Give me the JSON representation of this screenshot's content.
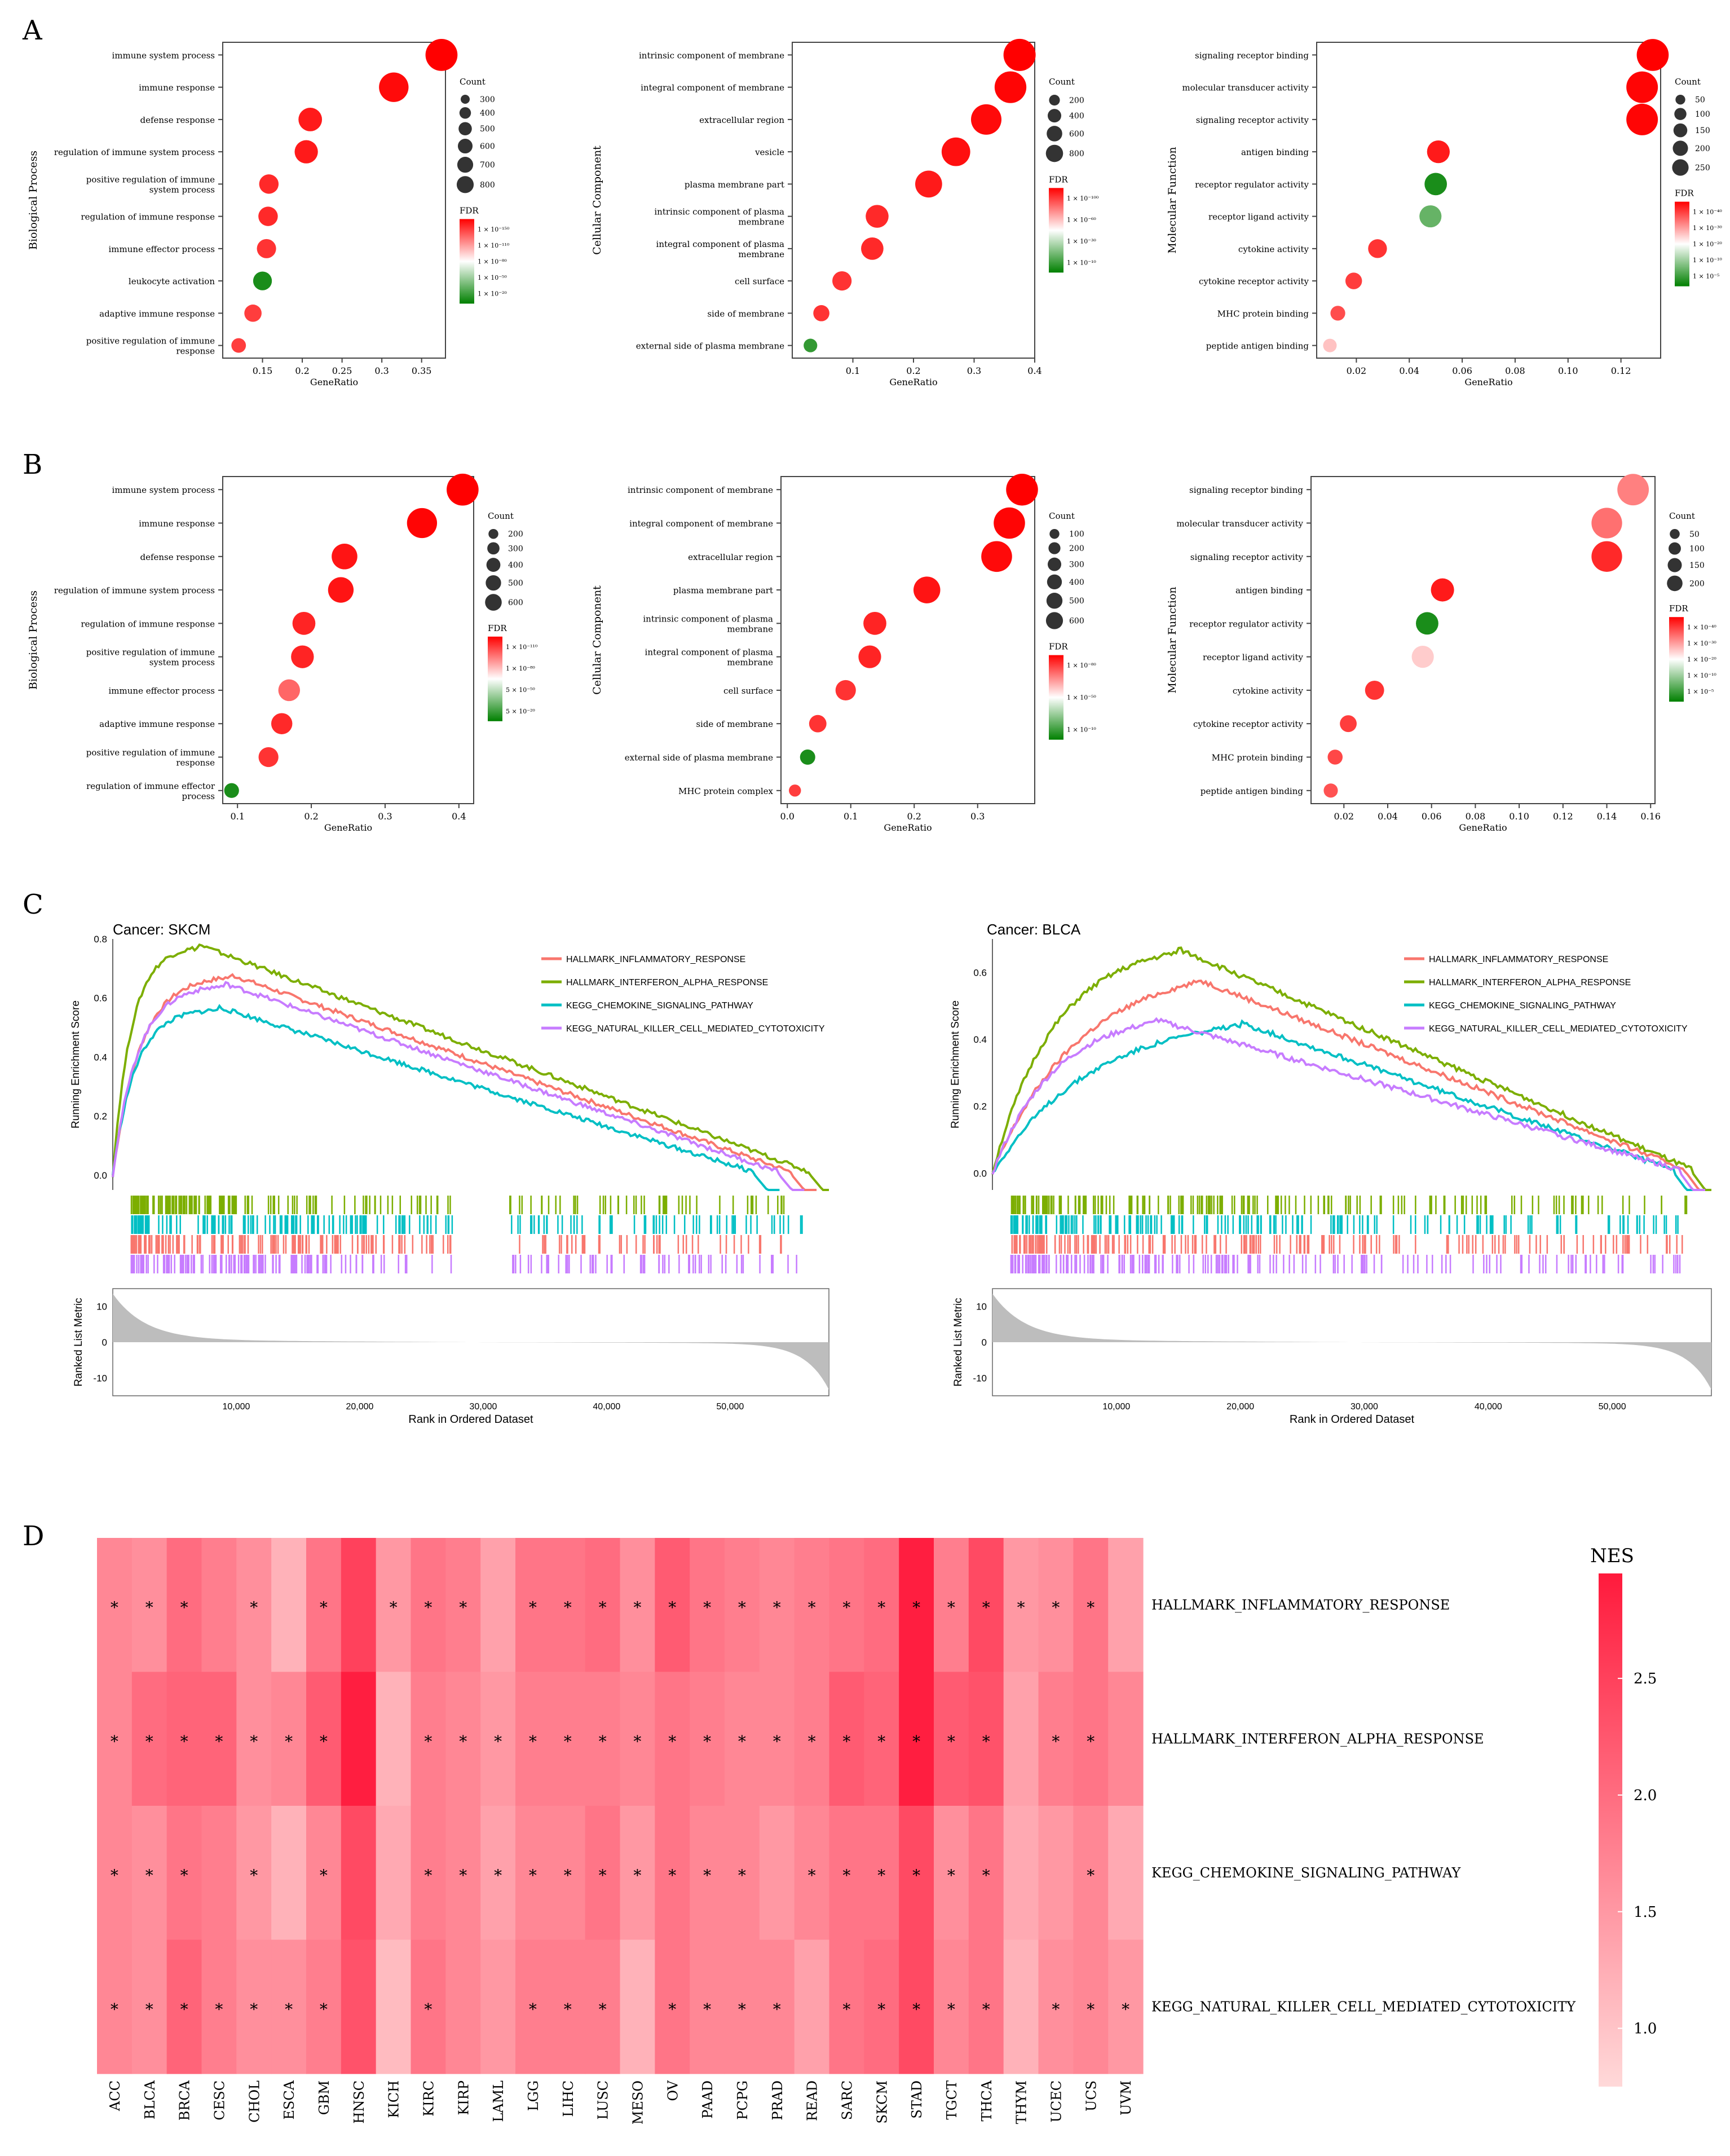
{
  "panel_labels": [
    "A",
    "B",
    "C",
    "D"
  ],
  "colors": {
    "fdr_high": "#ff0000",
    "fdr_mid": "#ffffff",
    "fdr_low": "#008000",
    "heat_high": "#ff1a3c",
    "heat_low": "#ffd9d9",
    "hm_inflam": "#f8766d",
    "hm_ifna": "#7cae00",
    "kegg_chemo": "#00bfc4",
    "kegg_nk": "#c77cff",
    "ranked_fill": "#bdbdbd"
  },
  "chart_data": [
    {
      "type": "scatter",
      "panel": "A",
      "ylabel": "Biological Process",
      "xlabel": "GeneRatio",
      "xlim": [
        0.1,
        0.38
      ],
      "xticks": [
        "0.15",
        "0.2",
        "0.25",
        "0.3",
        "0.35"
      ],
      "xtick_values": [
        0.15,
        0.2,
        0.25,
        0.3,
        0.35
      ],
      "terms": [
        "immune system process",
        "immune response",
        "defense response",
        "regulation of immune system process",
        "positive regulation of immune system process",
        "regulation of immune response",
        "immune effector process",
        "leukocyte activation",
        "adaptive immune response",
        "positive regulation of immune response"
      ],
      "values": [
        0.375,
        0.315,
        0.21,
        0.205,
        0.158,
        0.157,
        0.155,
        0.15,
        0.138,
        0.12
      ],
      "counts": [
        860,
        730,
        480,
        470,
        360,
        360,
        355,
        345,
        315,
        275
      ],
      "fdr_level": [
        1.0,
        0.98,
        0.95,
        0.95,
        0.92,
        0.92,
        0.9,
        0.05,
        0.88,
        0.88
      ],
      "count_title": "Count",
      "count_ticks": [
        "300",
        "400",
        "500",
        "600",
        "700",
        "800"
      ],
      "count_tick_values": [
        300,
        400,
        500,
        600,
        700,
        800
      ],
      "fdr_title": "FDR",
      "fdr_ticks": [
        "1 × 10⁻¹⁵⁰",
        "1 × 10⁻¹¹⁰",
        "1 × 10⁻⁸⁰",
        "1 × 10⁻⁵⁰",
        "1 × 10⁻²⁰"
      ],
      "count_range": [
        250,
        900
      ]
    },
    {
      "type": "scatter",
      "panel": "A",
      "ylabel": "Cellular Component",
      "xlabel": "GeneRatio",
      "xlim": [
        0.0,
        0.4
      ],
      "xticks": [
        "0.1",
        "0.2",
        "0.3",
        "0.4"
      ],
      "xtick_values": [
        0.1,
        0.2,
        0.3,
        0.4
      ],
      "terms": [
        "intrinsic component of membrane",
        "integral component of membrane",
        "extracellular region",
        "vesicle",
        "plasma membrane part",
        "intrinsic component of plasma membrane",
        "integral component of plasma membrane",
        "cell surface",
        "side of membrane",
        "external side of plasma membrane"
      ],
      "values": [
        0.375,
        0.36,
        0.32,
        0.27,
        0.225,
        0.14,
        0.132,
        0.082,
        0.048,
        0.03
      ],
      "counts": [
        860,
        830,
        740,
        620,
        520,
        320,
        300,
        190,
        110,
        70
      ],
      "fdr_level": [
        1.0,
        0.99,
        0.98,
        0.97,
        0.95,
        0.92,
        0.92,
        0.9,
        0.9,
        0.1
      ],
      "count_title": "Count",
      "count_ticks": [
        "200",
        "400",
        "600",
        "800"
      ],
      "count_tick_values": [
        200,
        400,
        600,
        800
      ],
      "fdr_title": "FDR",
      "fdr_ticks": [
        "1 × 10⁻¹⁰⁰",
        "1 × 10⁻⁶⁰",
        "1 × 10⁻³⁰",
        "1 × 10⁻¹⁰"
      ],
      "count_range": [
        50,
        900
      ]
    },
    {
      "type": "scatter",
      "panel": "A",
      "ylabel": "Molecular Function",
      "xlabel": "GeneRatio",
      "xlim": [
        0.005,
        0.135
      ],
      "xticks": [
        "0.02",
        "0.04",
        "0.06",
        "0.08",
        "0.10",
        "0.12"
      ],
      "xtick_values": [
        0.02,
        0.04,
        0.06,
        0.08,
        0.1,
        0.12
      ],
      "terms": [
        "signaling receptor binding",
        "molecular transducer activity",
        "signaling receptor activity",
        "antigen binding",
        "receptor regulator activity",
        "receptor ligand activity",
        "cytokine activity",
        "cytokine receptor activity",
        "MHC protein binding",
        "peptide antigen binding"
      ],
      "values": [
        0.132,
        0.128,
        0.128,
        0.051,
        0.05,
        0.048,
        0.028,
        0.019,
        0.013,
        0.01
      ],
      "counts": [
        300,
        290,
        290,
        110,
        105,
        100,
        60,
        40,
        28,
        22
      ],
      "fdr_level": [
        1.0,
        0.99,
        0.99,
        0.95,
        0.05,
        0.2,
        0.9,
        0.88,
        0.85,
        0.62
      ],
      "count_title": "Count",
      "count_ticks": [
        "50",
        "100",
        "150",
        "200",
        "250"
      ],
      "count_tick_values": [
        50,
        100,
        150,
        200,
        250
      ],
      "fdr_title": "FDR",
      "fdr_ticks": [
        "1 × 10⁻⁴⁰",
        "1 × 10⁻³⁰",
        "1 × 10⁻²⁰",
        "1 × 10⁻¹⁰",
        "1 × 10⁻⁵"
      ],
      "count_range": [
        15,
        320
      ]
    },
    {
      "type": "scatter",
      "panel": "B",
      "ylabel": "Biological Process",
      "xlabel": "GeneRatio",
      "xlim": [
        0.08,
        0.42
      ],
      "xticks": [
        "0.1",
        "0.2",
        "0.3",
        "0.4"
      ],
      "xtick_values": [
        0.1,
        0.2,
        0.3,
        0.4
      ],
      "terms": [
        "immune system process",
        "immune response",
        "defense response",
        "regulation of immune system process",
        "regulation of immune response",
        "positive regulation of immune system process",
        "immune effector process",
        "adaptive immune response",
        "positive regulation of immune response",
        "regulation of immune effector process"
      ],
      "values": [
        0.405,
        0.35,
        0.245,
        0.24,
        0.19,
        0.188,
        0.17,
        0.16,
        0.142,
        0.092
      ],
      "counts": [
        680,
        590,
        410,
        405,
        320,
        315,
        285,
        270,
        240,
        155
      ],
      "fdr_level": [
        1.0,
        0.99,
        0.96,
        0.96,
        0.93,
        0.93,
        0.8,
        0.92,
        0.9,
        0.05
      ],
      "count_title": "Count",
      "count_ticks": [
        "200",
        "300",
        "400",
        "500",
        "600"
      ],
      "count_tick_values": [
        200,
        300,
        400,
        500,
        600
      ],
      "fdr_title": "FDR",
      "fdr_ticks": [
        "1 × 10⁻¹¹⁰",
        "1 × 10⁻⁸⁰",
        "5 × 10⁻⁵⁰",
        "5 × 10⁻²⁰"
      ],
      "count_range": [
        130,
        720
      ]
    },
    {
      "type": "scatter",
      "panel": "B",
      "ylabel": "Cellular Component",
      "xlabel": "GeneRatio",
      "xlim": [
        -0.01,
        0.39
      ],
      "xticks": [
        "0.0",
        "0.1",
        "0.2",
        "0.3"
      ],
      "xtick_values": [
        0.0,
        0.1,
        0.2,
        0.3
      ],
      "terms": [
        "intrinsic component of membrane",
        "integral component of membrane",
        "extracellular region",
        "plasma membrane part",
        "intrinsic component of plasma membrane",
        "integral component of plasma membrane",
        "cell surface",
        "side of membrane",
        "external side of plasma membrane",
        "MHC protein complex"
      ],
      "values": [
        0.37,
        0.35,
        0.33,
        0.22,
        0.138,
        0.13,
        0.092,
        0.048,
        0.032,
        0.012
      ],
      "counts": [
        650,
        620,
        590,
        390,
        240,
        230,
        160,
        90,
        55,
        25
      ],
      "fdr_level": [
        1.0,
        0.99,
        0.98,
        0.96,
        0.93,
        0.93,
        0.9,
        0.9,
        0.05,
        0.88
      ],
      "count_title": "Count",
      "count_ticks": [
        "100",
        "200",
        "300",
        "400",
        "500",
        "600"
      ],
      "count_tick_values": [
        100,
        200,
        300,
        400,
        500,
        600
      ],
      "fdr_title": "FDR",
      "fdr_ticks": [
        "1 × 10⁻⁸⁰",
        "1 × 10⁻⁵⁰",
        "1 × 10⁻¹⁰"
      ],
      "count_range": [
        20,
        700
      ]
    },
    {
      "type": "scatter",
      "panel": "B",
      "ylabel": "Molecular Function",
      "xlabel": "GeneRatio",
      "xlim": [
        0.005,
        0.162
      ],
      "xticks": [
        "0.02",
        "0.04",
        "0.06",
        "0.08",
        "0.10",
        "0.12",
        "0.14",
        "0.16"
      ],
      "xtick_values": [
        0.02,
        0.04,
        0.06,
        0.08,
        0.1,
        0.12,
        0.14,
        0.16
      ],
      "terms": [
        "signaling receptor binding",
        "molecular transducer activity",
        "signaling receptor activity",
        "antigen binding",
        "receptor regulator activity",
        "receptor ligand activity",
        "cytokine activity",
        "cytokine receptor activity",
        "MHC protein binding",
        "peptide antigen binding"
      ],
      "values": [
        0.152,
        0.14,
        0.14,
        0.065,
        0.058,
        0.056,
        0.034,
        0.022,
        0.016,
        0.014
      ],
      "counts": [
        270,
        250,
        250,
        110,
        100,
        95,
        60,
        40,
        28,
        24
      ],
      "fdr_level": [
        0.75,
        0.78,
        0.92,
        0.95,
        0.05,
        0.6,
        0.9,
        0.88,
        0.86,
        0.84
      ],
      "count_title": "Count",
      "count_ticks": [
        "50",
        "100",
        "150",
        "200"
      ],
      "count_tick_values": [
        50,
        100,
        150,
        200
      ],
      "fdr_title": "FDR",
      "fdr_ticks": [
        "1 × 10⁻⁴⁰",
        "1 × 10⁻³⁰",
        "1 × 10⁻²⁰",
        "1 × 10⁻¹⁰",
        "1 × 10⁻⁵"
      ],
      "count_range": [
        15,
        300
      ]
    },
    {
      "type": "line",
      "panel": "C",
      "title": "Cancer: SKCM",
      "ylabel": "Running Enrichment Score",
      "xlabel": "Rank in Ordered Dataset",
      "ranked_ylabel": "Ranked List Metric",
      "ylim": [
        -0.05,
        0.8
      ],
      "yticks": [
        "0.0",
        "0.2",
        "0.4",
        "0.6",
        "0.8"
      ],
      "ytick_values": [
        0.0,
        0.2,
        0.4,
        0.6,
        0.8
      ],
      "xlim": [
        0,
        58000
      ],
      "xticks": [
        "10,000",
        "20,000",
        "30,000",
        "40,000",
        "50,000"
      ],
      "xtick_values": [
        10000,
        20000,
        30000,
        40000,
        50000
      ],
      "ranked_ylim": [
        -15,
        15
      ],
      "ranked_yticks": [
        "10",
        "0",
        "-10"
      ],
      "ranked_ytick_values": [
        10,
        0,
        -10
      ],
      "series": [
        {
          "name": "HALLMARK_INFLAMMATORY_RESPONSE",
          "color": "#f8766d",
          "peak": 0.67,
          "peak_x": 9500,
          "rise": 2200,
          "end_x": 55000
        },
        {
          "name": "HALLMARK_INTERFERON_ALPHA_RESPONSE",
          "color": "#7cae00",
          "peak": 0.77,
          "peak_x": 7000,
          "rise": 1500,
          "end_x": 56500
        },
        {
          "name": "KEGG_CHEMOKINE_SIGNALING_PATHWAY",
          "color": "#00bfc4",
          "peak": 0.56,
          "peak_x": 8500,
          "rise": 1800,
          "end_x": 52000
        },
        {
          "name": "KEGG_NATURAL_KILLER_CELL_MEDIATED_CYTOTOXICITY",
          "color": "#c77cff",
          "peak": 0.64,
          "peak_x": 9000,
          "rise": 2000,
          "end_x": 54000
        }
      ]
    },
    {
      "type": "line",
      "panel": "C",
      "title": "Cancer: BLCA",
      "ylabel": "Running Enrichment Score",
      "xlabel": "Rank in Ordered Dataset",
      "ranked_ylabel": "Ranked List Metric",
      "ylim": [
        -0.05,
        0.7
      ],
      "yticks": [
        "0.0",
        "0.2",
        "0.4",
        "0.6"
      ],
      "ytick_values": [
        0.0,
        0.2,
        0.4,
        0.6
      ],
      "xlim": [
        0,
        58000
      ],
      "xticks": [
        "10,000",
        "20,000",
        "30,000",
        "40,000",
        "50,000"
      ],
      "xtick_values": [
        10000,
        20000,
        30000,
        40000,
        50000
      ],
      "ranked_ylim": [
        -15,
        15
      ],
      "ranked_yticks": [
        "10",
        "0",
        "-10"
      ],
      "ranked_ytick_values": [
        10,
        0,
        -10
      ],
      "series": [
        {
          "name": "HALLMARK_INFLAMMATORY_RESPONSE",
          "color": "#f8766d",
          "peak": 0.57,
          "peak_x": 16500,
          "rise": 7000,
          "end_x": 56000
        },
        {
          "name": "HALLMARK_INTERFERON_ALPHA_RESPONSE",
          "color": "#7cae00",
          "peak": 0.66,
          "peak_x": 15000,
          "rise": 5000,
          "end_x": 56500
        },
        {
          "name": "KEGG_CHEMOKINE_SIGNALING_PATHWAY",
          "color": "#00bfc4",
          "peak": 0.44,
          "peak_x": 20000,
          "rise": 8000,
          "end_x": 55000
        },
        {
          "name": "KEGG_NATURAL_KILLER_CELL_MEDIATED_CYTOTOXICITY",
          "color": "#c77cff",
          "peak": 0.45,
          "peak_x": 13000,
          "rise": 5000,
          "end_x": 55500
        }
      ]
    },
    {
      "type": "heatmap",
      "panel": "D",
      "legend_title": "NES",
      "legend_ticks": [
        "2.5",
        "2.0",
        "1.5",
        "1.0"
      ],
      "legend_tick_values": [
        2.5,
        2.0,
        1.5,
        1.0
      ],
      "vmin": 0.75,
      "vmax": 2.95,
      "columns": [
        "ACC",
        "BLCA",
        "BRCA",
        "CESC",
        "CHOL",
        "ESCA",
        "GBM",
        "HNSC",
        "KICH",
        "KIRC",
        "KIRP",
        "LAML",
        "LGG",
        "LIHC",
        "LUSC",
        "MESO",
        "OV",
        "PAAD",
        "PCPG",
        "PRAD",
        "READ",
        "SARC",
        "SKCM",
        "STAD",
        "TGCT",
        "THCA",
        "THYM",
        "UCEC",
        "UCS",
        "UVM"
      ],
      "rows": [
        "HALLMARK_INFLAMMATORY_RESPONSE",
        "HALLMARK_INTERFERON_ALPHA_RESPONSE",
        "KEGG_CHEMOKINE_SIGNALING_PATHWAY",
        "KEGG_NATURAL_KILLER_CELL_MEDIATED_CYTOTOXICITY"
      ],
      "values": [
        [
          1.7,
          1.6,
          2.0,
          1.8,
          1.6,
          1.2,
          1.9,
          2.5,
          1.5,
          1.9,
          1.8,
          1.4,
          1.9,
          1.9,
          2.0,
          1.6,
          2.2,
          1.9,
          1.8,
          1.7,
          1.8,
          1.9,
          2.0,
          2.9,
          1.8,
          2.4,
          1.5,
          1.6,
          1.9,
          1.4
        ],
        [
          1.7,
          2.0,
          2.1,
          2.1,
          1.6,
          1.7,
          2.2,
          2.9,
          1.2,
          1.8,
          1.7,
          1.5,
          1.8,
          1.8,
          1.8,
          1.7,
          1.9,
          1.8,
          1.7,
          1.7,
          1.8,
          2.2,
          2.1,
          2.9,
          2.2,
          2.3,
          1.4,
          1.8,
          1.9,
          1.7
        ],
        [
          1.7,
          1.6,
          1.9,
          1.8,
          1.5,
          1.2,
          1.7,
          2.4,
          1.3,
          1.8,
          1.7,
          1.4,
          1.7,
          1.7,
          1.9,
          1.5,
          1.9,
          1.7,
          1.7,
          1.5,
          1.7,
          1.9,
          1.9,
          2.4,
          1.6,
          1.9,
          1.3,
          1.5,
          1.7,
          1.3
        ],
        [
          1.7,
          1.6,
          2.1,
          1.8,
          1.6,
          1.6,
          1.8,
          2.3,
          1.1,
          1.9,
          1.7,
          1.5,
          1.8,
          1.8,
          1.8,
          1.2,
          1.9,
          1.7,
          1.7,
          1.7,
          1.4,
          1.9,
          2.0,
          2.4,
          1.7,
          1.9,
          1.2,
          1.6,
          1.7,
          1.5
        ]
      ],
      "significant": [
        [
          1,
          1,
          1,
          0,
          1,
          0,
          1,
          0,
          1,
          1,
          1,
          0,
          1,
          1,
          1,
          1,
          1,
          1,
          1,
          1,
          1,
          1,
          1,
          1,
          1,
          1,
          1,
          1,
          1,
          0
        ],
        [
          1,
          1,
          1,
          1,
          1,
          1,
          1,
          0,
          0,
          1,
          1,
          1,
          1,
          1,
          1,
          1,
          1,
          1,
          1,
          1,
          1,
          1,
          1,
          1,
          1,
          1,
          0,
          1,
          1,
          0
        ],
        [
          1,
          1,
          1,
          0,
          1,
          0,
          1,
          0,
          0,
          1,
          1,
          1,
          1,
          1,
          1,
          1,
          1,
          1,
          1,
          0,
          1,
          1,
          1,
          1,
          1,
          1,
          0,
          0,
          1,
          0
        ],
        [
          1,
          1,
          1,
          1,
          1,
          1,
          1,
          0,
          0,
          1,
          0,
          0,
          1,
          1,
          1,
          0,
          1,
          1,
          1,
          1,
          0,
          1,
          1,
          1,
          1,
          1,
          0,
          1,
          1,
          1
        ]
      ],
      "significance_mark": "*"
    }
  ]
}
